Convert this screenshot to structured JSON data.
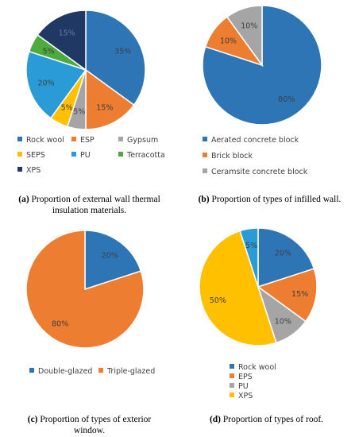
{
  "chart_data": [
    {
      "type": "pie",
      "caption_label": "(a)",
      "caption_text": "Proportion of external wall thermal insulation materials.",
      "slices": [
        {
          "name": "Rock wool",
          "value": 35,
          "label": "35%",
          "color": "#2E75B6"
        },
        {
          "name": "ESP",
          "value": 15,
          "label": "15%",
          "color": "#ED7D31"
        },
        {
          "name": "Gypsum",
          "value": 5,
          "label": "5%",
          "color": "#A5A5A5"
        },
        {
          "name": "SEPS",
          "value": 5,
          "label": "5%",
          "color": "#FFC000"
        },
        {
          "name": "PU",
          "value": 20,
          "label": "20%",
          "color": "#2B9BD8"
        },
        {
          "name": "Terracotta",
          "value": 5,
          "label": "5%",
          "color": "#4DAA3C"
        },
        {
          "name": "XPS",
          "value": 15,
          "label": "15%",
          "color": "#1F3864"
        }
      ],
      "legend_layout": "grid-3-columns"
    },
    {
      "type": "pie",
      "caption_label": "(b)",
      "caption_text": "Proportion of types of infilled wall.",
      "slices": [
        {
          "name": "Aerated concrete block",
          "value": 80,
          "label": "80%",
          "color": "#2E75B6"
        },
        {
          "name": "Brick block",
          "value": 10,
          "label": "10%",
          "color": "#ED7D31"
        },
        {
          "name": "Ceramsite concrete block",
          "value": 10,
          "label": "10%",
          "color": "#A5A5A5"
        }
      ],
      "legend_layout": "vertical"
    },
    {
      "type": "pie",
      "caption_label": "(c)",
      "caption_text": "Proportion of types of exterior window.",
      "slices": [
        {
          "name": "Double-glazed",
          "value": 20,
          "label": "20%",
          "color": "#2E75B6"
        },
        {
          "name": "Triple-glazed",
          "value": 80,
          "label": "80%",
          "color": "#ED7D31"
        }
      ],
      "legend_layout": "horizontal"
    },
    {
      "type": "pie",
      "caption_label": "(d)",
      "caption_text": "Proportion of types of roof.",
      "slices": [
        {
          "name": "Rock wool",
          "value": 20,
          "label": "20%",
          "color": "#2E75B6"
        },
        {
          "name": "EPS",
          "value": 15,
          "label": "15%",
          "color": "#ED7D31"
        },
        {
          "name": "PU",
          "value": 10,
          "label": "10%",
          "color": "#A5A5A5"
        },
        {
          "name": "XPS",
          "value": 50,
          "label": "50%",
          "color": "#FFC000"
        },
        {
          "name": "",
          "value": 5,
          "label": "5%",
          "color": "#2B9BD8"
        }
      ],
      "legend_entries": [
        "Rock wool",
        "EPS",
        "PU",
        "XPS"
      ],
      "legend_layout": "vertical"
    }
  ]
}
